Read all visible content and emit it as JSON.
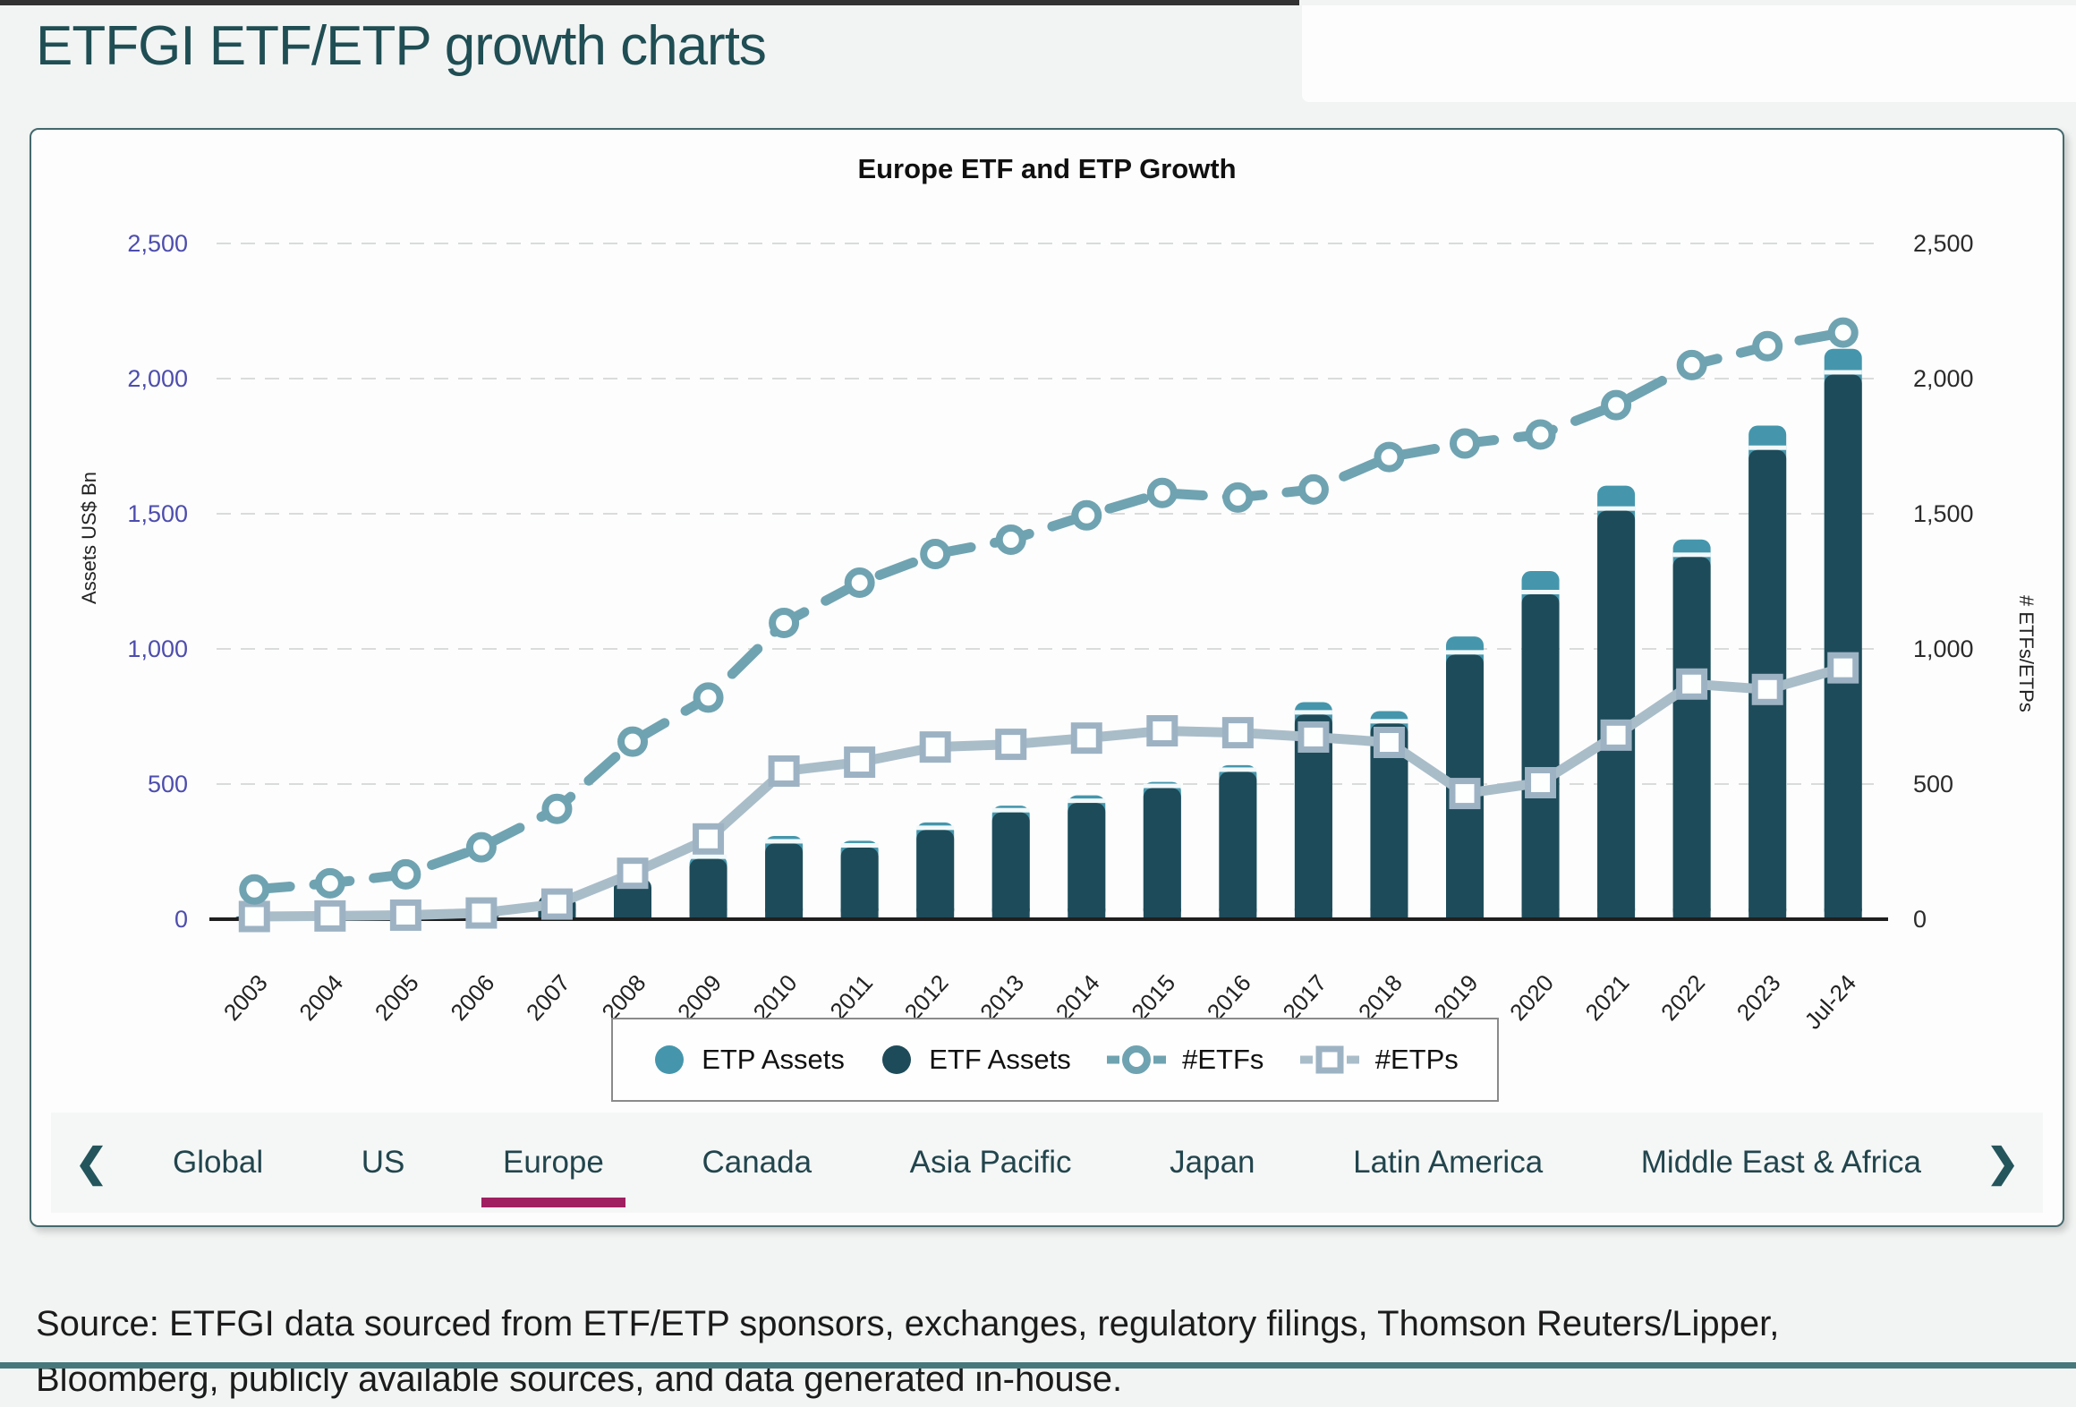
{
  "page": {
    "title": "ETFGI ETF/ETP growth charts"
  },
  "chart_data": {
    "type": "bar",
    "title": "Europe ETF and ETP Growth",
    "categories": [
      "2003",
      "2004",
      "2005",
      "2006",
      "2007",
      "2008",
      "2009",
      "2010",
      "2011",
      "2012",
      "2013",
      "2014",
      "2015",
      "2016",
      "2017",
      "2018",
      "2019",
      "2020",
      "2021",
      "2022",
      "2023",
      "Jul-24"
    ],
    "series": [
      {
        "name": "ETP Assets",
        "type": "bar-stack-top",
        "color": "#4596ac",
        "values": [
          2,
          2,
          3,
          5,
          8,
          12,
          14,
          28,
          25,
          28,
          25,
          28,
          23,
          25,
          46,
          46,
          67,
          86,
          93,
          65,
          90,
          95
        ]
      },
      {
        "name": "ETF Assets",
        "type": "bar",
        "color": "#1e4b59",
        "values": [
          12,
          18,
          28,
          45,
          88,
          150,
          223,
          280,
          265,
          330,
          395,
          430,
          485,
          545,
          757,
          724,
          979,
          1202,
          1511,
          1340,
          1736,
          2015
        ]
      },
      {
        "name": "#ETFs",
        "type": "line",
        "style": "dashed",
        "marker": "circle",
        "color": "#6fa3b1",
        "values": [
          110,
          133,
          166,
          266,
          408,
          657,
          820,
          1096,
          1245,
          1351,
          1404,
          1494,
          1577,
          1560,
          1590,
          1710,
          1760,
          1793,
          1902,
          2050,
          2120,
          2170
        ]
      },
      {
        "name": "#ETPs",
        "type": "line",
        "style": "solid",
        "marker": "square",
        "color": "#a9bdc9",
        "values": [
          10,
          12,
          15,
          23,
          56,
          170,
          297,
          548,
          581,
          637,
          647,
          670,
          697,
          690,
          674,
          654,
          465,
          505,
          681,
          870,
          850,
          930
        ]
      }
    ],
    "ylabel_left": "Assets US$ Bn",
    "ylabel_right": "# ETFs/ETPs",
    "ylim": [
      0,
      2500
    ],
    "yticks": [
      0,
      500,
      1000,
      1500,
      2000,
      2500
    ],
    "grid": "horizontal-dashed",
    "legend_position": "bottom-center"
  },
  "tabs": {
    "items": [
      "Global",
      "US",
      "Europe",
      "Canada",
      "Asia Pacific",
      "Japan",
      "Latin America",
      "Middle East & Africa"
    ],
    "active": "Europe",
    "active_underline_color": "#a01f62",
    "prev_icon": "❮",
    "next_icon": "❯"
  },
  "source": {
    "text": "Source: ETFGI data sourced from ETF/ETP sponsors, exchanges, regulatory filings, Thomson Reuters/Lipper, Bloomberg, publicly available sources, and data generated in-house."
  }
}
